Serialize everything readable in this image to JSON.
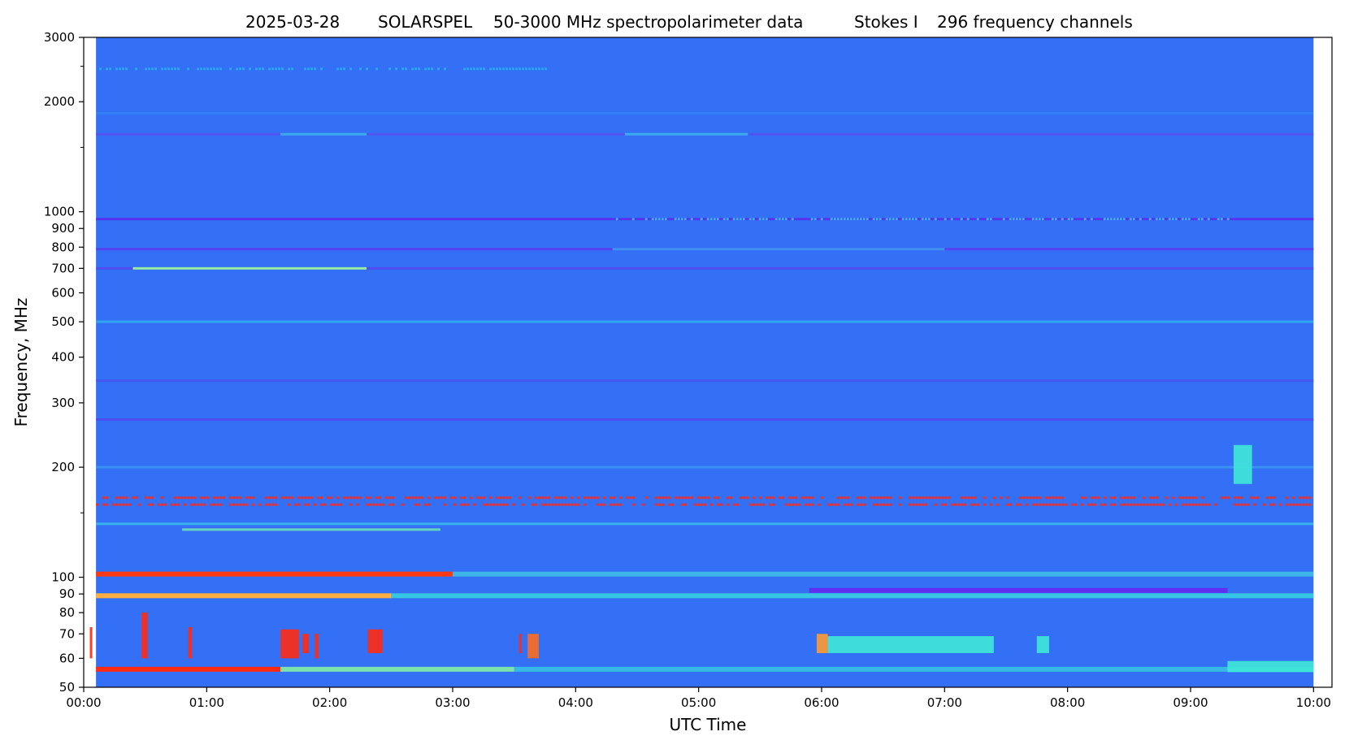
{
  "chart_data": {
    "type": "heatmap",
    "title": {
      "date": "2025-03-28",
      "instrument": "SOLARSPEL",
      "description": "50-3000 MHz spectropolarimeter data",
      "stokes": "Stokes I",
      "channels": "296 frequency channels"
    },
    "xlabel": "UTC Time",
    "ylabel": "Frequency, MHz",
    "x_tick_labels": [
      "00:00",
      "01:00",
      "02:00",
      "03:00",
      "04:00",
      "05:00",
      "06:00",
      "07:00",
      "08:00",
      "09:00",
      "10:00"
    ],
    "x_range_hours": [
      0,
      10.15
    ],
    "y_scale": "log",
    "y_range": [
      50,
      3000
    ],
    "y_ticks_labeled": [
      50,
      60,
      70,
      80,
      90,
      100,
      200,
      300,
      400,
      500,
      600,
      700,
      800,
      900,
      1000,
      2000,
      3000
    ],
    "y_ticks_minor": [
      150,
      1500,
      2500
    ],
    "data_extent_hours": [
      0.1,
      10.0
    ],
    "background_color": "#3370f5",
    "colormap": "rainbow",
    "horizontal_bands": [
      {
        "freq": 2460,
        "color": "#27c7ef",
        "intensity": 0.6,
        "t0": 0.1,
        "t1": 3.8,
        "speckled": true
      },
      {
        "freq": 1860,
        "color": "#33a6f2",
        "intensity": 0.3,
        "t0": 0.1,
        "t1": 10.0
      },
      {
        "freq": 1630,
        "color": "#5a4ff0",
        "intensity": 0.8,
        "t0": 0.1,
        "t1": 10.0
      },
      {
        "freq": 1630,
        "color": "#2fd0ea",
        "intensity": 0.7,
        "t0": 1.6,
        "t1": 2.3
      },
      {
        "freq": 1630,
        "color": "#2fd0ea",
        "intensity": 0.7,
        "t0": 4.4,
        "t1": 5.4
      },
      {
        "freq": 955,
        "color": "#5a2ef0",
        "intensity": 0.9,
        "t0": 0.1,
        "t1": 10.0
      },
      {
        "freq": 955,
        "color": "#2ee0e8",
        "intensity": 0.7,
        "t0": 4.3,
        "t1": 9.3,
        "speckled": true
      },
      {
        "freq": 790,
        "color": "#5a3ef0",
        "intensity": 0.9,
        "t0": 0.1,
        "t1": 10.0
      },
      {
        "freq": 790,
        "color": "#36c6ee",
        "intensity": 0.6,
        "t0": 4.3,
        "t1": 7.0
      },
      {
        "freq": 700,
        "color": "#5a3ef0",
        "intensity": 0.7,
        "t0": 0.1,
        "t1": 10.0
      },
      {
        "freq": 700,
        "color": "#9dff9a",
        "intensity": 0.9,
        "t0": 0.4,
        "t1": 2.3
      },
      {
        "freq": 500,
        "color": "#2ec8ee",
        "intensity": 0.6,
        "t0": 0.1,
        "t1": 10.0
      },
      {
        "freq": 345,
        "color": "#4a53f0",
        "intensity": 0.8,
        "t0": 0.1,
        "t1": 10.0
      },
      {
        "freq": 270,
        "color": "#5a3ef0",
        "intensity": 0.7,
        "t0": 0.1,
        "t1": 10.0
      },
      {
        "freq": 200,
        "color": "#45b0f0",
        "intensity": 0.5,
        "t0": 0.1,
        "t1": 10.0
      },
      {
        "freq": 165,
        "color": "#ff2a1a",
        "intensity": 1.0,
        "t0": 0.1,
        "t1": 10.0,
        "speckled": true
      },
      {
        "freq": 158,
        "color": "#ff2a1a",
        "intensity": 1.0,
        "t0": 0.1,
        "t1": 10.0,
        "speckled": true
      },
      {
        "freq": 140,
        "color": "#3de0e8",
        "intensity": 0.6,
        "t0": 0.1,
        "t1": 10.0
      },
      {
        "freq": 135,
        "color": "#7effa8",
        "intensity": 0.7,
        "t0": 0.8,
        "t1": 2.9
      },
      {
        "freq": 102,
        "color": "#ff3a12",
        "intensity": 1.0,
        "t0": 0.1,
        "t1": 3.0
      },
      {
        "freq": 102,
        "color": "#44e2e0",
        "intensity": 0.6,
        "t0": 3.0,
        "t1": 10.0
      },
      {
        "freq": 89,
        "color": "#ffb040",
        "intensity": 1.0,
        "t0": 0.1,
        "t1": 2.5
      },
      {
        "freq": 89,
        "color": "#3ae8dc",
        "intensity": 0.7,
        "t0": 2.5,
        "t1": 10.0
      },
      {
        "freq": 92,
        "color": "#6a1ef0",
        "intensity": 0.8,
        "t0": 5.9,
        "t1": 9.3
      },
      {
        "freq": 56,
        "color": "#ff2a12",
        "intensity": 1.0,
        "t0": 0.1,
        "t1": 1.6
      },
      {
        "freq": 56,
        "color": "#8dff9a",
        "intensity": 0.8,
        "t0": 1.6,
        "t1": 3.5
      },
      {
        "freq": 56,
        "color": "#3ae8dc",
        "intensity": 0.6,
        "t0": 3.5,
        "t1": 10.0
      }
    ],
    "bursts": [
      {
        "t0": 0.05,
        "t1": 0.07,
        "f0": 60,
        "f1": 73,
        "color": "#ff2a12"
      },
      {
        "t0": 0.47,
        "t1": 0.52,
        "f0": 60,
        "f1": 80,
        "color": "#ff2a12"
      },
      {
        "t0": 0.85,
        "t1": 0.88,
        "f0": 60,
        "f1": 73,
        "color": "#ff2a12"
      },
      {
        "t0": 1.6,
        "t1": 1.75,
        "f0": 60,
        "f1": 72,
        "color": "#ff2a12"
      },
      {
        "t0": 1.78,
        "t1": 1.83,
        "f0": 62,
        "f1": 70,
        "color": "#ff2a12"
      },
      {
        "t0": 1.88,
        "t1": 1.91,
        "f0": 60,
        "f1": 70,
        "color": "#ff2a12"
      },
      {
        "t0": 2.31,
        "t1": 2.43,
        "f0": 62,
        "f1": 72,
        "color": "#ff2a12"
      },
      {
        "t0": 3.54,
        "t1": 3.56,
        "f0": 62,
        "f1": 70,
        "color": "#ff2a12"
      },
      {
        "t0": 3.61,
        "t1": 3.7,
        "f0": 60,
        "f1": 70,
        "color": "#ff6a20"
      },
      {
        "t0": 5.96,
        "t1": 6.05,
        "f0": 62,
        "f1": 70,
        "color": "#ff9a30"
      },
      {
        "t0": 6.05,
        "t1": 7.4,
        "f0": 62,
        "f1": 69,
        "color": "#3fe8d8"
      },
      {
        "t0": 7.75,
        "t1": 7.85,
        "f0": 62,
        "f1": 69,
        "color": "#3fe8d8"
      },
      {
        "t0": 9.35,
        "t1": 9.5,
        "f0": 180,
        "f1": 230,
        "color": "#3fe8d8"
      },
      {
        "t0": 9.3,
        "t1": 10.0,
        "f0": 55,
        "f1": 59,
        "color": "#3fe8d8"
      }
    ]
  }
}
